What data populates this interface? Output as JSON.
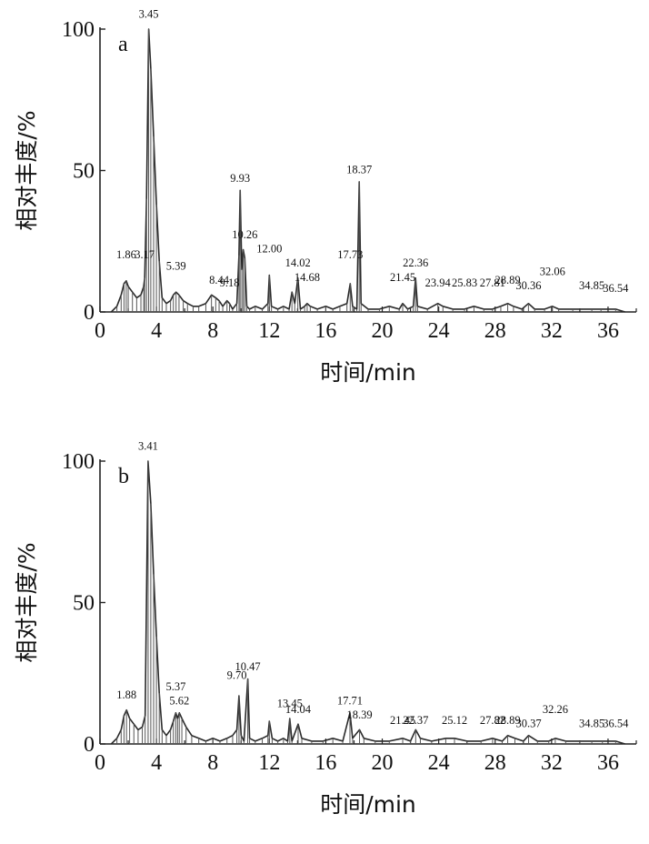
{
  "chart_data": [
    {
      "type": "line",
      "panel_label": "a",
      "xlabel": "时间/min",
      "ylabel": "相对丰度/%",
      "xlim": [
        0,
        38
      ],
      "ylim": [
        0,
        100
      ],
      "xticks": [
        0,
        4,
        8,
        12,
        16,
        20,
        24,
        28,
        32,
        36
      ],
      "yticks": [
        0,
        50,
        100
      ],
      "series": [
        {
          "x": [
            0.8,
            1.2,
            1.5,
            1.7,
            1.86,
            2.0,
            2.3,
            2.6,
            2.9,
            3.1,
            3.17,
            3.3,
            3.45,
            3.6,
            3.8,
            4.0,
            4.2,
            4.4,
            4.7,
            5.0,
            5.2,
            5.39,
            5.6,
            5.9,
            6.2,
            6.6,
            7.0,
            7.5,
            7.9,
            8.2,
            8.44,
            8.7,
            9.0,
            9.18,
            9.4,
            9.7,
            9.85,
            9.93,
            10.05,
            10.15,
            10.26,
            10.4,
            10.6,
            11.0,
            11.5,
            11.9,
            12.0,
            12.15,
            12.6,
            13.0,
            13.4,
            13.6,
            13.8,
            14.02,
            14.2,
            14.5,
            14.68,
            14.9,
            15.4,
            16.0,
            16.5,
            17.0,
            17.5,
            17.73,
            17.9,
            18.2,
            18.37,
            18.5,
            19.0,
            19.8,
            20.5,
            21.2,
            21.45,
            21.8,
            22.2,
            22.36,
            22.5,
            23.2,
            23.94,
            24.3,
            25.0,
            25.83,
            26.5,
            27.2,
            27.81,
            28.4,
            28.89,
            29.3,
            29.9,
            30.36,
            30.8,
            31.5,
            32.06,
            32.5,
            33.5,
            34.85,
            35.5,
            36.54,
            37.2
          ],
          "y": [
            0,
            2,
            6,
            10,
            11,
            9,
            7,
            5,
            6,
            9,
            12,
            40,
            100,
            86,
            62,
            38,
            18,
            5,
            3,
            4,
            6,
            7,
            6,
            4,
            3,
            2,
            2,
            3,
            6,
            5,
            4,
            2,
            4,
            3,
            1,
            3,
            20,
            43,
            15,
            22,
            19,
            2,
            1,
            2,
            1,
            3,
            13,
            2,
            1,
            2,
            1,
            7,
            3,
            12,
            1,
            2,
            3,
            2,
            1,
            2,
            1,
            2,
            3,
            10,
            2,
            1,
            46,
            3,
            1,
            1,
            2,
            1,
            3,
            1,
            2,
            12,
            2,
            1,
            3,
            2,
            1,
            1,
            2,
            1,
            1,
            2,
            3,
            2,
            1,
            3,
            1,
            1,
            2,
            1,
            1,
            1,
            1,
            1,
            0
          ]
        }
      ],
      "annotations": [
        {
          "x": 1.86,
          "y": 19,
          "text": "1.86"
        },
        {
          "x": 3.17,
          "y": 19,
          "text": "3.17"
        },
        {
          "x": 3.45,
          "y": 104,
          "text": "3.45"
        },
        {
          "x": 5.39,
          "y": 15,
          "text": "5.39"
        },
        {
          "x": 8.44,
          "y": 10,
          "text": "8.44"
        },
        {
          "x": 9.18,
          "y": 9,
          "text": "9.18"
        },
        {
          "x": 9.93,
          "y": 46,
          "text": "9.93"
        },
        {
          "x": 10.26,
          "y": 26,
          "text": "10.26"
        },
        {
          "x": 12.0,
          "y": 21,
          "text": "12.00"
        },
        {
          "x": 14.02,
          "y": 16,
          "text": "14.02"
        },
        {
          "x": 14.68,
          "y": 11,
          "text": "14.68"
        },
        {
          "x": 17.73,
          "y": 19,
          "text": "17.73"
        },
        {
          "x": 18.37,
          "y": 49,
          "text": "18.37"
        },
        {
          "x": 21.45,
          "y": 11,
          "text": "21.45"
        },
        {
          "x": 22.36,
          "y": 16,
          "text": "22.36"
        },
        {
          "x": 23.94,
          "y": 9,
          "text": "23.94"
        },
        {
          "x": 25.83,
          "y": 9,
          "text": "25.83"
        },
        {
          "x": 27.81,
          "y": 9,
          "text": "27.81"
        },
        {
          "x": 28.89,
          "y": 10,
          "text": "28.89"
        },
        {
          "x": 30.36,
          "y": 8,
          "text": "30.36"
        },
        {
          "x": 32.06,
          "y": 13,
          "text": "32.06"
        },
        {
          "x": 34.85,
          "y": 8,
          "text": "34.85"
        },
        {
          "x": 36.54,
          "y": 7,
          "text": "36.54"
        }
      ]
    },
    {
      "type": "line",
      "panel_label": "b",
      "xlabel": "时间/min",
      "ylabel": "相对丰度/%",
      "xlim": [
        0,
        38
      ],
      "ylim": [
        0,
        100
      ],
      "xticks": [
        0,
        4,
        8,
        12,
        16,
        20,
        24,
        28,
        32,
        36
      ],
      "yticks": [
        0,
        50,
        100
      ],
      "series": [
        {
          "x": [
            0.8,
            1.2,
            1.5,
            1.7,
            1.88,
            2.1,
            2.4,
            2.7,
            3.0,
            3.2,
            3.41,
            3.6,
            3.8,
            4.0,
            4.2,
            4.4,
            4.7,
            5.0,
            5.2,
            5.37,
            5.5,
            5.62,
            5.8,
            6.1,
            6.5,
            7.0,
            7.5,
            8.0,
            8.5,
            9.0,
            9.4,
            9.7,
            9.85,
            10.0,
            10.2,
            10.47,
            10.6,
            11.0,
            11.5,
            11.9,
            12.0,
            12.2,
            12.6,
            13.0,
            13.3,
            13.45,
            13.6,
            14.04,
            14.3,
            15.0,
            15.8,
            16.5,
            17.2,
            17.71,
            17.9,
            18.39,
            18.7,
            19.5,
            20.5,
            21.45,
            22.0,
            22.37,
            22.7,
            23.5,
            24.5,
            25.12,
            26.0,
            27.0,
            27.82,
            28.5,
            28.89,
            29.4,
            30.0,
            30.37,
            31.0,
            31.8,
            32.26,
            33.0,
            34.0,
            34.85,
            35.6,
            36.54,
            37.2
          ],
          "y": [
            0,
            2,
            5,
            10,
            12,
            9,
            7,
            5,
            6,
            10,
            100,
            85,
            60,
            38,
            18,
            5,
            3,
            5,
            8,
            11,
            9,
            11,
            9,
            6,
            3,
            2,
            1,
            2,
            1,
            2,
            3,
            5,
            17,
            3,
            1,
            23,
            2,
            1,
            2,
            3,
            8,
            2,
            1,
            2,
            1,
            9,
            1,
            7,
            2,
            1,
            1,
            2,
            1,
            11,
            2,
            5,
            2,
            1,
            1,
            2,
            1,
            5,
            2,
            1,
            2,
            2,
            1,
            1,
            2,
            1,
            3,
            2,
            1,
            3,
            1,
            1,
            2,
            1,
            1,
            1,
            1,
            1,
            0
          ]
        }
      ],
      "annotations": [
        {
          "x": 1.88,
          "y": 16,
          "text": "1.88"
        },
        {
          "x": 3.41,
          "y": 104,
          "text": "3.41"
        },
        {
          "x": 5.37,
          "y": 19,
          "text": "5.37"
        },
        {
          "x": 5.62,
          "y": 14,
          "text": "5.62"
        },
        {
          "x": 9.7,
          "y": 23,
          "text": "9.70"
        },
        {
          "x": 10.47,
          "y": 26,
          "text": "10.47"
        },
        {
          "x": 13.45,
          "y": 13,
          "text": "13.45"
        },
        {
          "x": 14.04,
          "y": 11,
          "text": "14.04"
        },
        {
          "x": 17.71,
          "y": 14,
          "text": "17.71"
        },
        {
          "x": 18.39,
          "y": 9,
          "text": "18.39"
        },
        {
          "x": 21.45,
          "y": 7,
          "text": "21.45"
        },
        {
          "x": 22.37,
          "y": 7,
          "text": "22.37"
        },
        {
          "x": 25.12,
          "y": 7,
          "text": "25.12"
        },
        {
          "x": 27.82,
          "y": 7,
          "text": "27.82"
        },
        {
          "x": 28.89,
          "y": 7,
          "text": "28.89"
        },
        {
          "x": 30.37,
          "y": 6,
          "text": "30.37"
        },
        {
          "x": 32.26,
          "y": 11,
          "text": "32.26"
        },
        {
          "x": 34.85,
          "y": 6,
          "text": "34.85"
        },
        {
          "x": 36.54,
          "y": 6,
          "text": "36.54"
        }
      ]
    }
  ]
}
